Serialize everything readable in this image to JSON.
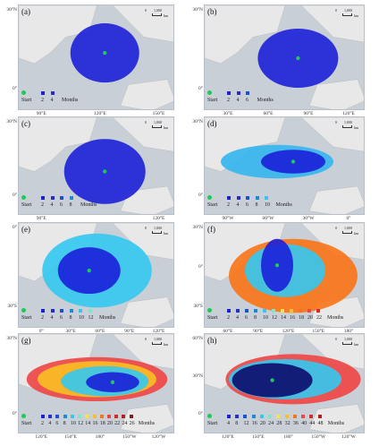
{
  "scale": {
    "zero": "0",
    "value": "1,000",
    "unit": "km"
  },
  "start_label": "Start",
  "months_label": "Months",
  "colors": {
    "ocean": "#c8cfd6",
    "land": "#e8e8e8",
    "start": "#22c55e"
  },
  "panels": [
    {
      "label": "(a)",
      "lats": [
        "30°N",
        "0°"
      ],
      "lons": [
        "90°E",
        "120°E",
        "150°E"
      ],
      "months": [
        "2",
        "4"
      ],
      "track_color": "#1b1fd8"
    },
    {
      "label": "(b)",
      "lats": [
        "30°N",
        "0°"
      ],
      "lons": [
        "30°E",
        "60°E",
        "90°E",
        "120°E"
      ],
      "months": [
        "2",
        "4",
        "6"
      ],
      "track_color": "#1b1fd8"
    },
    {
      "label": "(c)",
      "lats": [
        "30°N",
        "0°"
      ],
      "lons": [
        "90°E",
        "120°E"
      ],
      "months": [
        "2",
        "4",
        "6",
        "8"
      ],
      "track_color": "#1b1fd8"
    },
    {
      "label": "(d)",
      "lats": [
        "30°N",
        "0°"
      ],
      "lons": [
        "90°W",
        "60°W",
        "30°W",
        "0°"
      ],
      "months": [
        "2",
        "4",
        "6",
        "8",
        "10"
      ],
      "track_color": "#1b6bd8"
    },
    {
      "label": "(e)",
      "lats": [
        "0°",
        "30°S"
      ],
      "lons": [
        "0°",
        "30°E",
        "60°E",
        "90°E",
        "120°E"
      ],
      "months": [
        "2",
        "4",
        "6",
        "8",
        "10",
        "12"
      ],
      "track_color": "#1b6bd8"
    },
    {
      "label": "(f)",
      "lats": [
        "30°N",
        "0°",
        "30°S"
      ],
      "lons": [
        "60°E",
        "90°E",
        "120°E",
        "150°E",
        "180°"
      ],
      "months": [
        "2",
        "4",
        "6",
        "8",
        "10",
        "12",
        "14",
        "16",
        "18",
        "20",
        "22"
      ],
      "track_color": "#f97316"
    },
    {
      "label": "(g)",
      "lats": [
        "30°N",
        "0°"
      ],
      "lons": [
        "120°E",
        "150°E",
        "180°",
        "150°W",
        "120°W"
      ],
      "months": [
        "2",
        "4",
        "6",
        "8",
        "10",
        "12",
        "14",
        "16",
        "18",
        "20",
        "22",
        "24",
        "26"
      ],
      "track_color": "#ef4444"
    },
    {
      "label": "(h)",
      "lats": [
        "60°N",
        "30°N",
        "0°"
      ],
      "lons": [
        "120°E",
        "150°E",
        "180°",
        "150°W",
        "120°W"
      ],
      "months": [
        "4",
        "8",
        "12",
        "16",
        "20",
        "24",
        "28",
        "32",
        "36",
        "40",
        "44",
        "48"
      ],
      "track_color": "#ef4444"
    }
  ]
}
